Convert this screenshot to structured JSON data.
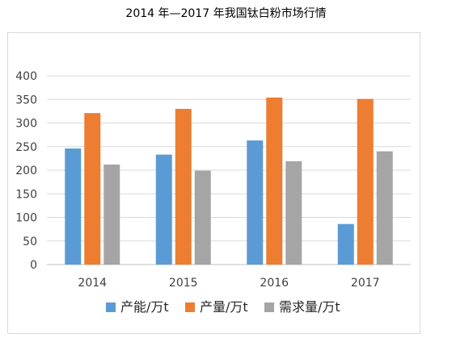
{
  "chart_data": {
    "type": "bar",
    "title": "2014 年—2017 年我国钛白粉市场行情",
    "categories": [
      "2014",
      "2015",
      "2016",
      "2017"
    ],
    "series": [
      {
        "name": "产能/万t",
        "color": "#5b9bd5",
        "values": [
          246,
          233,
          263,
          86
        ]
      },
      {
        "name": "产量/万t",
        "color": "#ed7d31",
        "values": [
          321,
          330,
          354,
          351
        ]
      },
      {
        "name": "需求量/万t",
        "color": "#a5a5a5",
        "values": [
          212,
          199,
          219,
          240
        ]
      }
    ],
    "xlabel": "",
    "ylabel": "",
    "ylim": [
      0,
      400
    ],
    "yticks": [
      0,
      50,
      100,
      150,
      200,
      250,
      300,
      350,
      400
    ],
    "grid": true,
    "legend_position": "bottom"
  }
}
